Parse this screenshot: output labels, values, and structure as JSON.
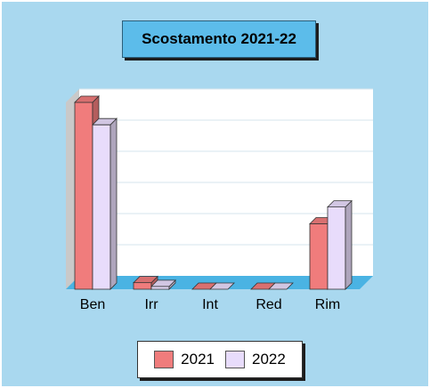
{
  "chart_data": {
    "type": "bar",
    "title": "Scostamento 2021-22",
    "categories": [
      "Ben",
      "Irr",
      "Int",
      "Red",
      "Rim"
    ],
    "series": [
      {
        "name": "2021",
        "values": [
          100,
          3.5,
          0,
          0,
          35
        ],
        "color": "#f07c7c"
      },
      {
        "name": "2022",
        "values": [
          88,
          1.5,
          0,
          0,
          44
        ],
        "color": "#e8dcfb"
      }
    ],
    "ylim": [
      0,
      100
    ],
    "grid": true,
    "legend_position": "bottom",
    "background_color": "#a9d8ef",
    "title_box_color": "#5cbcea"
  }
}
